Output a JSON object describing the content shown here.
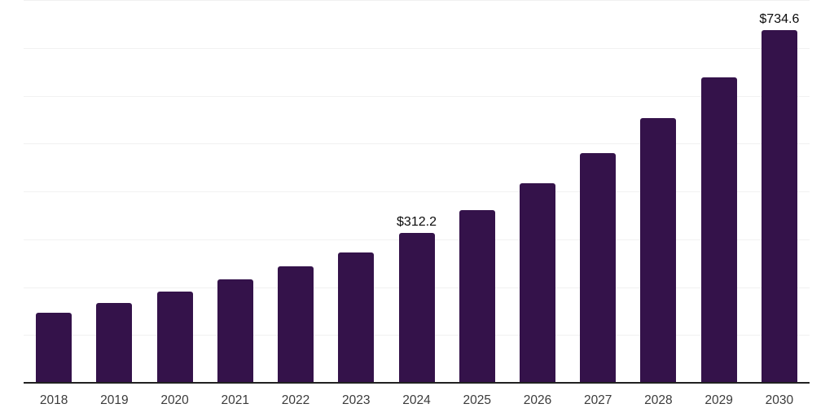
{
  "chart_data": {
    "type": "bar",
    "title": "",
    "categories": [
      "2018",
      "2019",
      "2020",
      "2021",
      "2022",
      "2023",
      "2024",
      "2025",
      "2026",
      "2027",
      "2028",
      "2029",
      "2030"
    ],
    "values": [
      144.2,
      164.6,
      188.4,
      214.0,
      240.9,
      270.6,
      312.2,
      360.0,
      415.1,
      478.6,
      551.9,
      636.4,
      734.6
    ],
    "data_labels": {
      "2024": "$312.2",
      "2030": "$734.6"
    },
    "xlabel": "",
    "ylabel": "",
    "ylim": [
      0,
      800
    ],
    "grid_step": 100,
    "grid": "horizontal gridlines, no y-axis tick labels",
    "legend": "none",
    "colors": {
      "bar_fill": "#34124A",
      "gridline": "#f1f1f1",
      "axis_line": "#212121",
      "category_label": "#3b3b3b",
      "value_label": "#0b0b0b",
      "background": "#ffffff"
    }
  }
}
